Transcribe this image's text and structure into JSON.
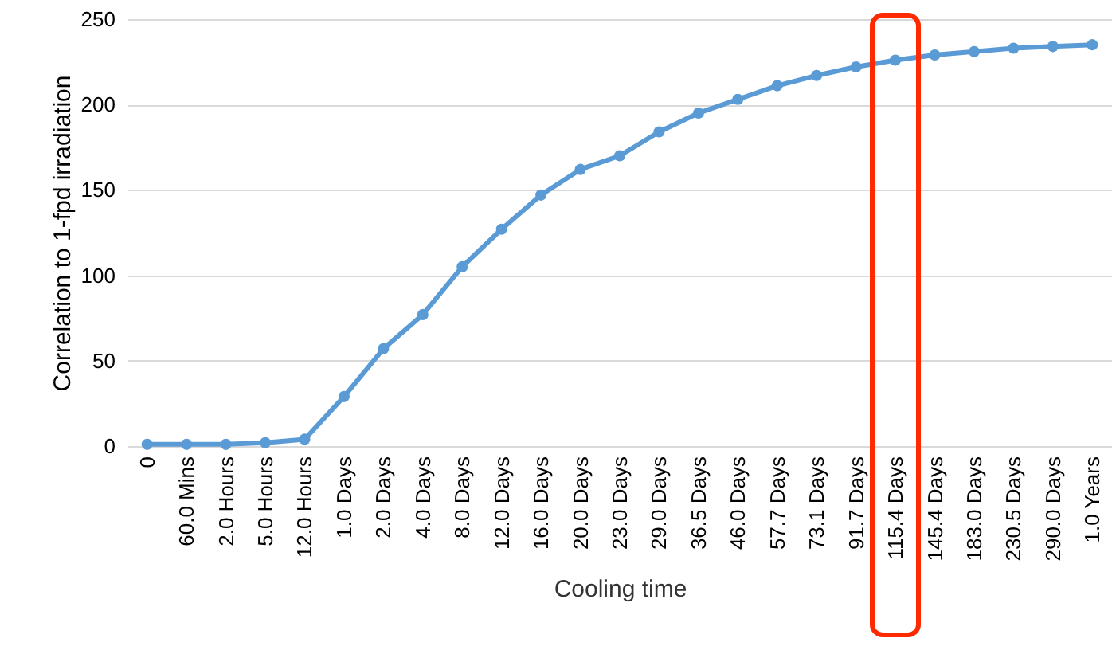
{
  "chart_data": {
    "type": "line",
    "xlabel": "Cooling time",
    "ylabel": "Correlation to 1-fpd irradiation",
    "categories": [
      "0",
      "60.0 Mins",
      "2.0 Hours",
      "5.0 Hours",
      "12.0 Hours",
      "1.0 Days",
      "2.0 Days",
      "4.0 Days",
      "8.0 Days",
      "12.0 Days",
      "16.0 Days",
      "20.0 Days",
      "23.0 Days",
      "29.0 Days",
      "36.5 Days",
      "46.0 Days",
      "57.7 Days",
      "73.1 Days",
      "91.7 Days",
      "115.4 Days",
      "145.4 Days",
      "183.0 Days",
      "230.5 Days",
      "290.0 Days",
      "1.0 Years"
    ],
    "series": [
      {
        "color": "#5b9bd5",
        "values": [
          1,
          1,
          1,
          2,
          4,
          29,
          57,
          77,
          105,
          127,
          147,
          162,
          170,
          184,
          195,
          203,
          211,
          217,
          222,
          226,
          229,
          231,
          233,
          234,
          235
        ]
      }
    ],
    "ylim": [
      0,
      250
    ],
    "yticks": [
      0,
      50,
      100,
      150,
      200,
      250
    ],
    "grid": "y",
    "marker": "circle",
    "line_style": "solid"
  }
}
